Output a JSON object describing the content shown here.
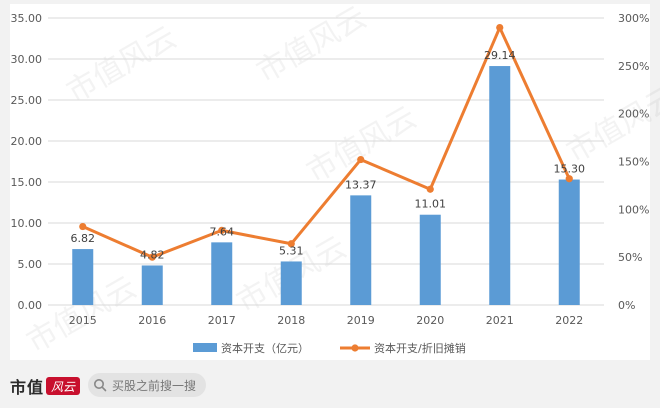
{
  "watermark": "市值风云",
  "footer": {
    "brand_text": "市值",
    "brand_mark_text": "风云",
    "search_placeholder": "买股之前搜一搜"
  },
  "colors": {
    "bar": "#5b9bd5",
    "line": "#ed7d31",
    "axis_text": "#595959",
    "grid": "#d9d9d9"
  },
  "chart_data": {
    "type": "bar",
    "categories": [
      "2015",
      "2016",
      "2017",
      "2018",
      "2019",
      "2020",
      "2021",
      "2022"
    ],
    "series": [
      {
        "name": "资本开支（亿元）",
        "type": "bar",
        "axis": "left",
        "values": [
          6.82,
          4.82,
          7.64,
          5.31,
          13.37,
          11.01,
          29.14,
          15.3
        ],
        "labels": [
          "6.82",
          "4.82",
          "7.64",
          "5.31",
          "13.37",
          "11.01",
          "29.14",
          "15.30"
        ]
      },
      {
        "name": "资本开支/折旧摊销",
        "type": "line",
        "axis": "right",
        "values": [
          82,
          50,
          78,
          64,
          152,
          121,
          290,
          132
        ]
      }
    ],
    "y_left": {
      "min": 0,
      "max": 35,
      "step": 5,
      "tick_labels": [
        "0.00",
        "5.00",
        "10.00",
        "15.00",
        "20.00",
        "25.00",
        "30.00",
        "35.00"
      ]
    },
    "y_right": {
      "min": 0,
      "max": 300,
      "step": 50,
      "tick_labels": [
        "0%",
        "50%",
        "100%",
        "150%",
        "200%",
        "250%",
        "300%"
      ]
    },
    "legend_position": "bottom",
    "grid": "horizontal"
  }
}
